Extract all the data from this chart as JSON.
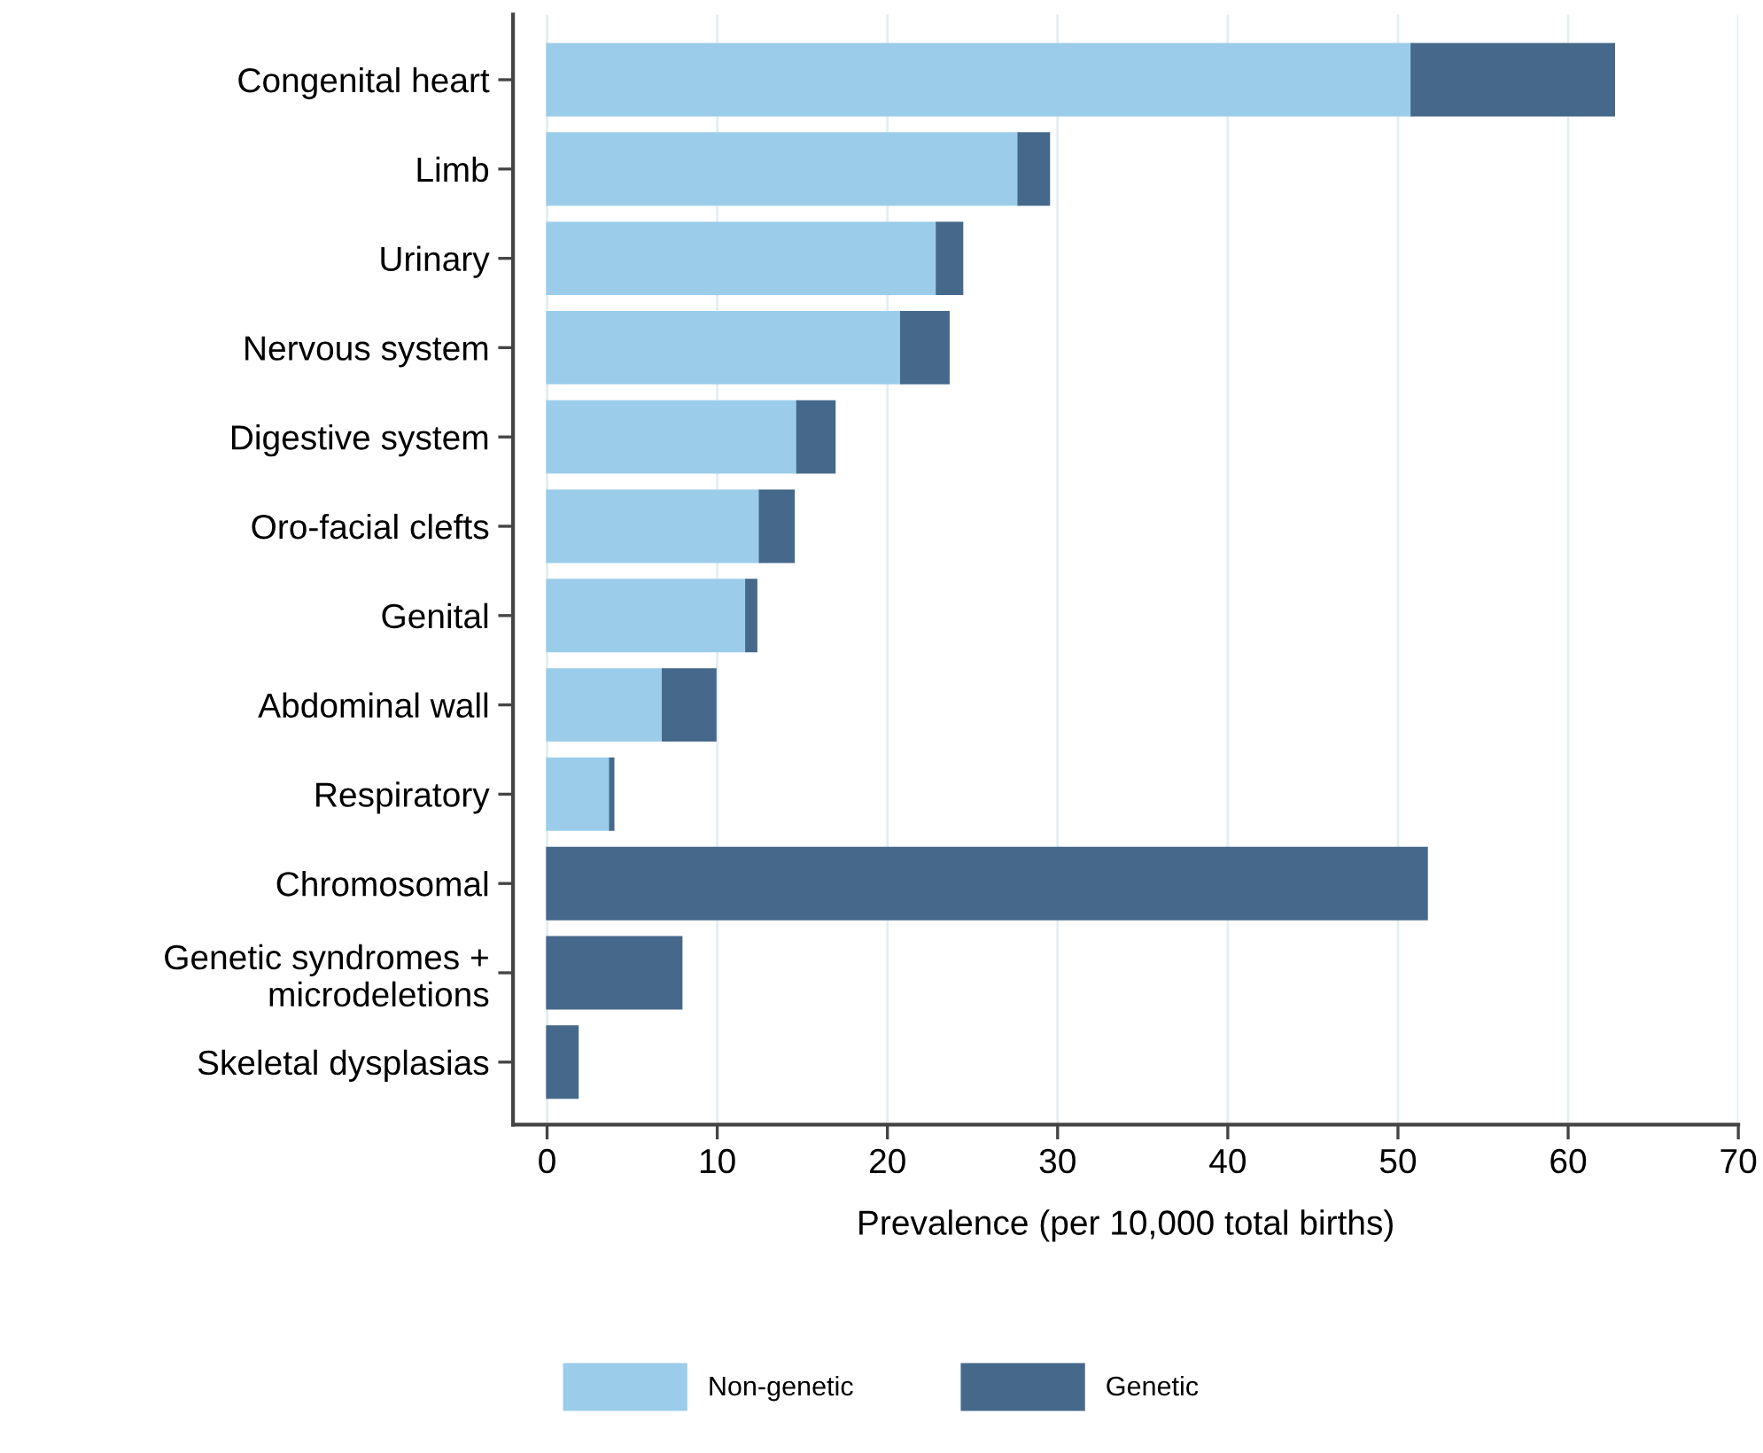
{
  "chart_data": {
    "type": "bar",
    "orientation": "horizontal",
    "stacked": true,
    "xlabel": "Prevalence (per 10,000 total births)",
    "categories": [
      "Congenital heart",
      "Limb",
      "Urinary",
      "Nervous system",
      "Digestive system",
      "Oro-facial clefts",
      "Genital",
      "Abdominal wall",
      "Respiratory",
      "Chromosomal",
      "Genetic syndromes +\nmicrodeletions",
      "Skeletal dysplasias"
    ],
    "series": [
      {
        "name": "Non-genetic",
        "color": "#9bcdeb",
        "values": [
          50.8,
          27.7,
          22.9,
          20.8,
          14.7,
          12.5,
          11.7,
          6.8,
          3.7,
          0,
          0,
          0
        ]
      },
      {
        "name": "Genetic",
        "color": "#46698b",
        "values": [
          11.9,
          1.8,
          1.5,
          2.8,
          2.2,
          2.0,
          0.6,
          3.1,
          0.2,
          51.7,
          7.9,
          1.8
        ]
      }
    ],
    "xlim": [
      -2,
      70
    ],
    "xticks": [
      0,
      10,
      20,
      30,
      40,
      50,
      60,
      70
    ],
    "grid": "x",
    "legend": "bottom"
  }
}
